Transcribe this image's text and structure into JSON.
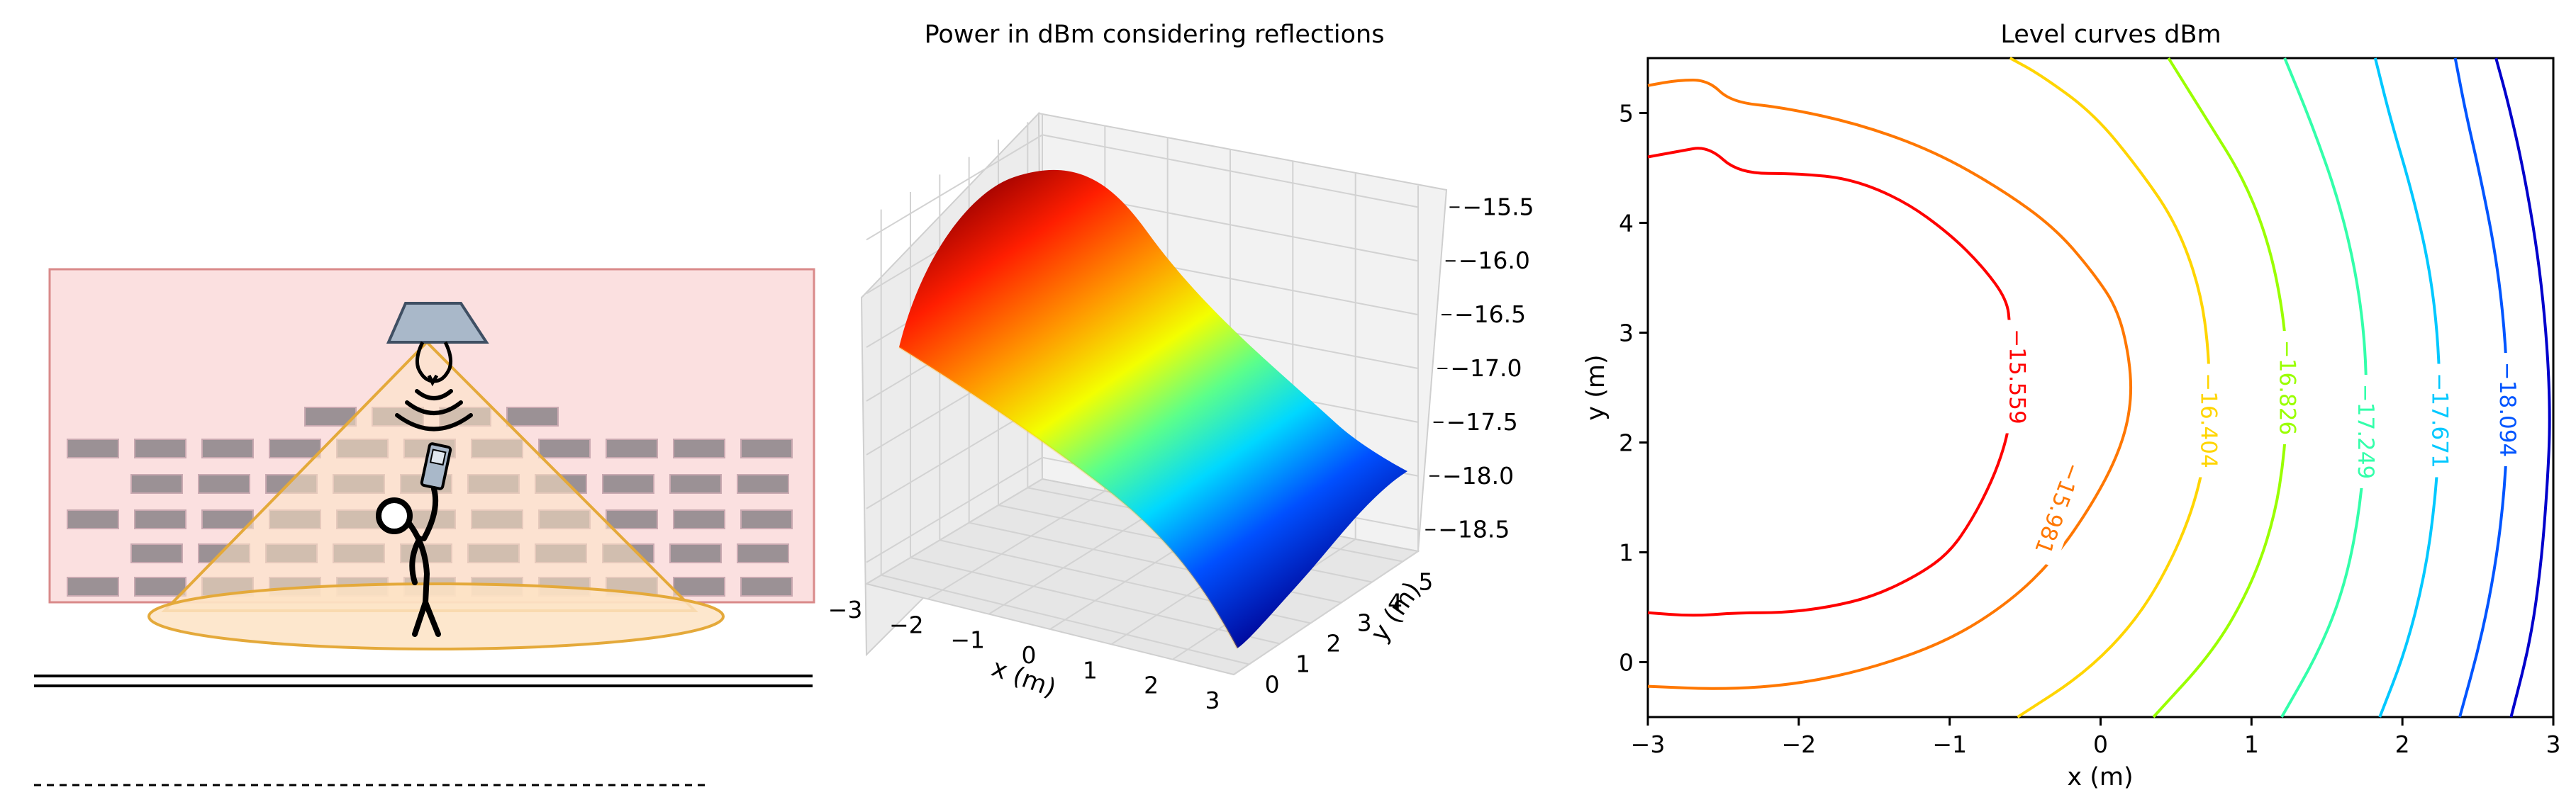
{
  "chart_data": [
    {
      "type": "illustration",
      "description_elements": [
        "brick-wall",
        "ceiling-lamp",
        "light-cone",
        "stick-figure-with-phone",
        "floor-lines",
        "dashed-line"
      ],
      "colors": {
        "wall": "#fbe0e0",
        "wall_border": "#d98a8a",
        "brick": "#8a8287",
        "cone_fill": "#fde3c4",
        "cone_stroke": "#e4a93a",
        "lamp_fill": "#a9b8c9",
        "lamp_stroke": "#3f4f63"
      }
    },
    {
      "type": "surface3d",
      "title": "Power in dBm considering reflections",
      "xlabel": "x (m)",
      "ylabel": "y (m)",
      "zlabel": "",
      "x_ticks": [
        -3,
        -2,
        -1,
        0,
        1,
        2,
        3
      ],
      "y_ticks": [
        0,
        1,
        2,
        3,
        4,
        5
      ],
      "z_ticks": [
        -15.5,
        -16.0,
        -16.5,
        -17.0,
        -17.5,
        -18.0,
        -18.5
      ],
      "x_tick_labels": [
        "−3",
        "−2",
        "−1",
        "0",
        "1",
        "2",
        "3"
      ],
      "y_tick_labels": [
        "0",
        "1",
        "2",
        "3",
        "4",
        "5"
      ],
      "z_tick_labels": [
        "−15.5",
        "−16.0",
        "−16.5",
        "−17.0",
        "−17.5",
        "−18.0",
        "−18.5"
      ],
      "xlim": [
        -3,
        3
      ],
      "ylim": [
        -0.5,
        5.5
      ],
      "zlim": [
        -18.7,
        -15.3
      ],
      "z_max": -15.4,
      "z_min": -18.6,
      "peak_xy": [
        -2.6,
        2.5
      ],
      "colormap": "jet",
      "grid": true
    },
    {
      "type": "contour",
      "title": "Level curves dBm",
      "xlabel": "x (m)",
      "ylabel": "y (m)",
      "xlim": [
        -3,
        3
      ],
      "ylim": [
        -0.5,
        5.5
      ],
      "x_ticks": [
        -3,
        -2,
        -1,
        0,
        1,
        2,
        3
      ],
      "y_ticks": [
        0,
        1,
        2,
        3,
        4,
        5
      ],
      "x_tick_labels": [
        "−3",
        "−2",
        "−1",
        "0",
        "1",
        "2",
        "3"
      ],
      "y_tick_labels": [
        "0",
        "1",
        "2",
        "3",
        "4",
        "5"
      ],
      "levels": [
        {
          "value": -15.559,
          "label": "−15.559",
          "color": "#ff0000",
          "points": [
            [
              -3.0,
              0.45
            ],
            [
              -2.7,
              0.42
            ],
            [
              -2.4,
              0.45
            ],
            [
              -2.1,
              0.45
            ],
            [
              -1.8,
              0.5
            ],
            [
              -1.5,
              0.6
            ],
            [
              -1.2,
              0.8
            ],
            [
              -1.0,
              1.0
            ],
            [
              -0.85,
              1.3
            ],
            [
              -0.72,
              1.65
            ],
            [
              -0.64,
              1.95
            ],
            [
              -0.6,
              2.2
            ],
            [
              -0.6,
              2.5
            ],
            [
              -0.6,
              2.8
            ],
            [
              -0.6,
              3.05
            ],
            [
              -0.62,
              3.3
            ],
            [
              -0.78,
              3.6
            ],
            [
              -1.0,
              3.9
            ],
            [
              -1.3,
              4.2
            ],
            [
              -1.65,
              4.4
            ],
            [
              -2.0,
              4.45
            ],
            [
              -2.4,
              4.45
            ],
            [
              -2.6,
              4.7
            ],
            [
              -2.8,
              4.65
            ],
            [
              -3.0,
              4.6
            ]
          ]
        },
        {
          "value": -15.981,
          "label": "−15.981",
          "color": "#ff7700",
          "points": [
            [
              -3.0,
              -0.22
            ],
            [
              -2.5,
              -0.25
            ],
            [
              -2.0,
              -0.2
            ],
            [
              -1.5,
              -0.05
            ],
            [
              -1.0,
              0.2
            ],
            [
              -0.6,
              0.55
            ],
            [
              -0.3,
              0.95
            ],
            [
              -0.05,
              1.45
            ],
            [
              0.12,
              1.9
            ],
            [
              0.2,
              2.3
            ],
            [
              0.2,
              2.7
            ],
            [
              0.12,
              3.2
            ],
            [
              -0.05,
              3.55
            ],
            [
              -0.3,
              3.95
            ],
            [
              -0.65,
              4.3
            ],
            [
              -1.1,
              4.65
            ],
            [
              -1.6,
              4.9
            ],
            [
              -2.1,
              5.05
            ],
            [
              -2.45,
              5.1
            ],
            [
              -2.6,
              5.3
            ],
            [
              -2.8,
              5.3
            ],
            [
              -3.0,
              5.25
            ]
          ]
        },
        {
          "value": -16.404,
          "label": "−16.404",
          "color": "#ffd500",
          "points": [
            [
              -0.55,
              -0.5
            ],
            [
              -0.1,
              -0.1
            ],
            [
              0.25,
              0.4
            ],
            [
              0.5,
              1.0
            ],
            [
              0.66,
              1.6
            ],
            [
              0.72,
              2.2
            ],
            [
              0.72,
              2.8
            ],
            [
              0.66,
              3.4
            ],
            [
              0.5,
              4.0
            ],
            [
              0.25,
              4.5
            ],
            [
              -0.05,
              5.0
            ],
            [
              -0.4,
              5.35
            ],
            [
              -0.6,
              5.5
            ]
          ]
        },
        {
          "value": -16.826,
          "label": "−16.826",
          "color": "#9aff00",
          "points": [
            [
              0.35,
              -0.5
            ],
            [
              0.75,
              0.1
            ],
            [
              1.0,
              0.7
            ],
            [
              1.15,
              1.3
            ],
            [
              1.22,
              1.9
            ],
            [
              1.24,
              2.5
            ],
            [
              1.22,
              3.1
            ],
            [
              1.12,
              3.8
            ],
            [
              0.95,
              4.4
            ],
            [
              0.7,
              4.95
            ],
            [
              0.45,
              5.5
            ]
          ]
        },
        {
          "value": -17.249,
          "label": "−17.249",
          "color": "#33ffaa",
          "points": [
            [
              1.2,
              -0.5
            ],
            [
              1.45,
              0.1
            ],
            [
              1.62,
              0.7
            ],
            [
              1.72,
              1.4
            ],
            [
              1.76,
              2.1
            ],
            [
              1.76,
              2.8
            ],
            [
              1.7,
              3.5
            ],
            [
              1.58,
              4.2
            ],
            [
              1.4,
              4.9
            ],
            [
              1.22,
              5.5
            ]
          ]
        },
        {
          "value": -17.671,
          "label": "−17.671",
          "color": "#00c8ff",
          "points": [
            [
              1.85,
              -0.5
            ],
            [
              2.02,
              0.1
            ],
            [
              2.15,
              0.8
            ],
            [
              2.22,
              1.5
            ],
            [
              2.25,
              2.2
            ],
            [
              2.24,
              2.9
            ],
            [
              2.18,
              3.6
            ],
            [
              2.06,
              4.3
            ],
            [
              1.92,
              4.95
            ],
            [
              1.82,
              5.5
            ]
          ]
        },
        {
          "value": -18.094,
          "label": "−18.094",
          "color": "#0055ff",
          "points": [
            [
              2.38,
              -0.5
            ],
            [
              2.52,
              0.2
            ],
            [
              2.62,
              0.9
            ],
            [
              2.68,
              1.6
            ],
            [
              2.7,
              2.3
            ],
            [
              2.68,
              3.0
            ],
            [
              2.62,
              3.7
            ],
            [
              2.52,
              4.4
            ],
            [
              2.42,
              5.0
            ],
            [
              2.35,
              5.5
            ]
          ]
        },
        {
          "value": -18.5,
          "label": "",
          "color": "#0000cc",
          "points": [
            [
              2.72,
              -0.5
            ],
            [
              2.85,
              0.2
            ],
            [
              2.92,
              0.9
            ],
            [
              2.96,
              1.6
            ],
            [
              2.98,
              2.2
            ],
            [
              2.96,
              2.9
            ],
            [
              2.9,
              3.7
            ],
            [
              2.8,
              4.5
            ],
            [
              2.7,
              5.1
            ],
            [
              2.62,
              5.5
            ]
          ]
        }
      ]
    }
  ]
}
